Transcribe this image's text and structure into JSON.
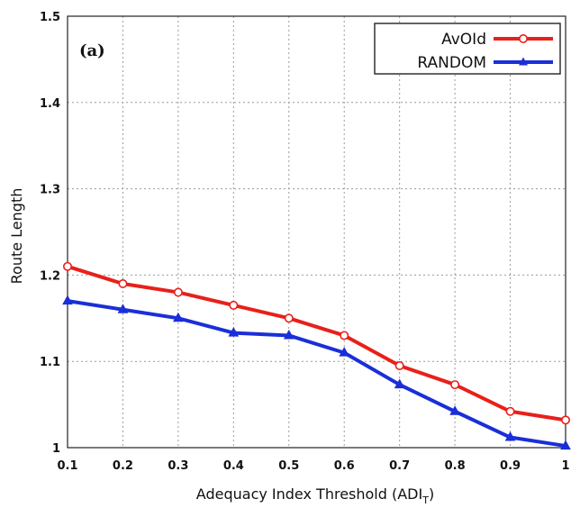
{
  "chart_data": {
    "type": "line",
    "panel_label": "(a)",
    "xlabel": "Adequacy Index Threshold (ADI",
    "xlabel_sub": "T",
    "xlabel_close": ")",
    "ylabel": "Route Length",
    "xlim": [
      0.1,
      1.0
    ],
    "ylim": [
      1.0,
      1.5
    ],
    "grid": true,
    "legend_position": "top-right",
    "x_ticks": [
      "0.1",
      "0.2",
      "0.3",
      "0.4",
      "0.5",
      "0.6",
      "0.7",
      "0.8",
      "0.9",
      "1"
    ],
    "y_ticks": [
      "1",
      "1.1",
      "1.2",
      "1.3",
      "1.4",
      "1.5"
    ],
    "x": [
      0.1,
      0.2,
      0.3,
      0.4,
      0.5,
      0.6,
      0.7,
      0.8,
      0.9,
      1.0
    ],
    "series": [
      {
        "name": "AvOId",
        "color": "#e8201a",
        "marker": "circle",
        "values": [
          1.21,
          1.19,
          1.18,
          1.165,
          1.15,
          1.13,
          1.095,
          1.073,
          1.042,
          1.032
        ]
      },
      {
        "name": "RANDOM",
        "color": "#1a2fd8",
        "marker": "triangle",
        "values": [
          1.17,
          1.16,
          1.15,
          1.133,
          1.13,
          1.11,
          1.073,
          1.042,
          1.012,
          1.002
        ]
      }
    ]
  }
}
